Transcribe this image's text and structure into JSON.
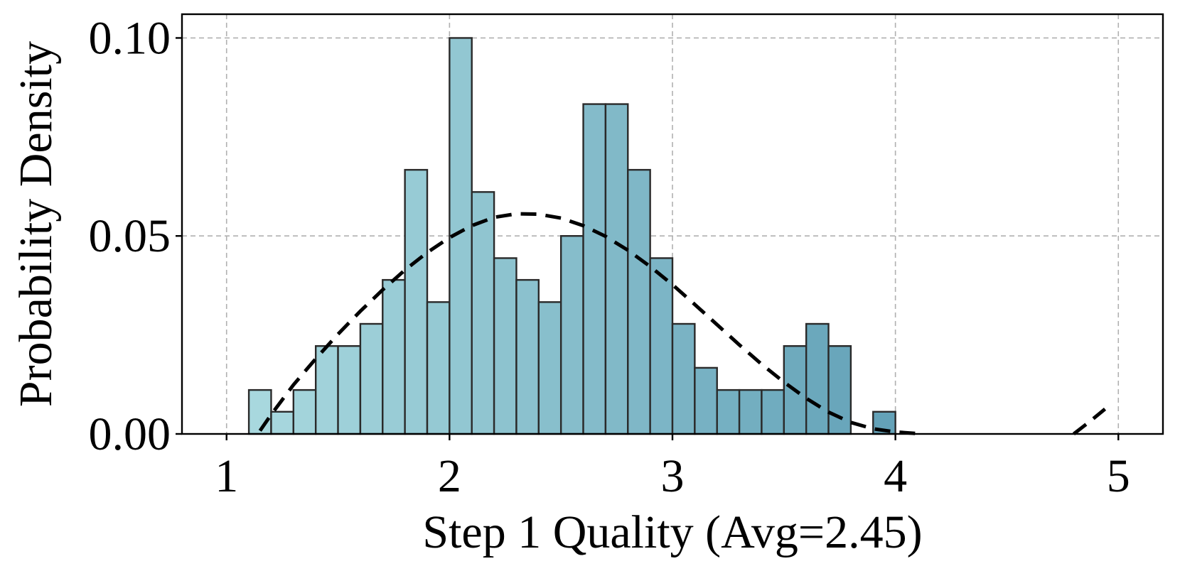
{
  "chart_data": {
    "type": "bar",
    "title": "",
    "xlabel": "Step 1 Quality (Avg=2.45)",
    "ylabel": "Probability Density",
    "xlim": [
      0.8,
      5.2
    ],
    "ylim": [
      0,
      0.106
    ],
    "xticks": [
      1,
      2,
      3,
      4,
      5
    ],
    "xtick_labels": [
      "1",
      "2",
      "3",
      "4",
      "5"
    ],
    "yticks": [
      0,
      0.05,
      0.1
    ],
    "ytick_labels": [
      "0.00",
      "0.05",
      "0.10"
    ],
    "grid": true,
    "bin_width": 0.1,
    "bins": [
      {
        "x0": 1.1,
        "density": 0.0111
      },
      {
        "x0": 1.2,
        "density": 0.0056
      },
      {
        "x0": 1.3,
        "density": 0.0111
      },
      {
        "x0": 1.4,
        "density": 0.0222
      },
      {
        "x0": 1.5,
        "density": 0.0222
      },
      {
        "x0": 1.6,
        "density": 0.0278
      },
      {
        "x0": 1.7,
        "density": 0.0389
      },
      {
        "x0": 1.8,
        "density": 0.0667
      },
      {
        "x0": 1.9,
        "density": 0.0333
      },
      {
        "x0": 2.0,
        "density": 0.1
      },
      {
        "x0": 2.1,
        "density": 0.0611
      },
      {
        "x0": 2.2,
        "density": 0.0444
      },
      {
        "x0": 2.3,
        "density": 0.0389
      },
      {
        "x0": 2.4,
        "density": 0.0333
      },
      {
        "x0": 2.5,
        "density": 0.05
      },
      {
        "x0": 2.6,
        "density": 0.0833
      },
      {
        "x0": 2.7,
        "density": 0.0833
      },
      {
        "x0": 2.8,
        "density": 0.0667
      },
      {
        "x0": 2.9,
        "density": 0.0444
      },
      {
        "x0": 3.0,
        "density": 0.0278
      },
      {
        "x0": 3.1,
        "density": 0.0167
      },
      {
        "x0": 3.2,
        "density": 0.0111
      },
      {
        "x0": 3.3,
        "density": 0.0111
      },
      {
        "x0": 3.4,
        "density": 0.0111
      },
      {
        "x0": 3.5,
        "density": 0.0222
      },
      {
        "x0": 3.6,
        "density": 0.0278
      },
      {
        "x0": 3.7,
        "density": 0.0222
      },
      {
        "x0": 3.9,
        "density": 0.0056
      }
    ],
    "fit_curve": {
      "style": "dashed",
      "color": "#000000",
      "points": [
        [
          1.15,
          0.0008
        ],
        [
          1.2,
          0.0049
        ],
        [
          1.3,
          0.0124
        ],
        [
          1.4,
          0.019
        ],
        [
          1.5,
          0.0252
        ],
        [
          1.6,
          0.031
        ],
        [
          1.7,
          0.0364
        ],
        [
          1.8,
          0.0414
        ],
        [
          1.9,
          0.0458
        ],
        [
          2.0,
          0.0496
        ],
        [
          2.1,
          0.0526
        ],
        [
          2.2,
          0.0547
        ],
        [
          2.3,
          0.0556
        ],
        [
          2.4,
          0.0555
        ],
        [
          2.5,
          0.0545
        ],
        [
          2.6,
          0.0526
        ],
        [
          2.7,
          0.0499
        ],
        [
          2.8,
          0.0464
        ],
        [
          2.9,
          0.0423
        ],
        [
          3.0,
          0.0377
        ],
        [
          3.1,
          0.0327
        ],
        [
          3.2,
          0.0276
        ],
        [
          3.3,
          0.0225
        ],
        [
          3.4,
          0.0176
        ],
        [
          3.5,
          0.0131
        ],
        [
          3.6,
          0.009
        ],
        [
          3.7,
          0.0055
        ],
        [
          3.8,
          0.0029
        ],
        [
          3.9,
          0.0013
        ],
        [
          4.0,
          0.0005
        ],
        [
          4.12,
          0.0
        ]
      ],
      "tail_points": [
        [
          4.8,
          0.0
        ],
        [
          4.88,
          0.0035
        ],
        [
          4.94,
          0.0063
        ]
      ]
    },
    "colors": {
      "bar_start": "#a8d8de",
      "bar_end": "#64a2b8",
      "bar_edge": "#2a2a2a",
      "grid": "#b0b0b0"
    }
  }
}
